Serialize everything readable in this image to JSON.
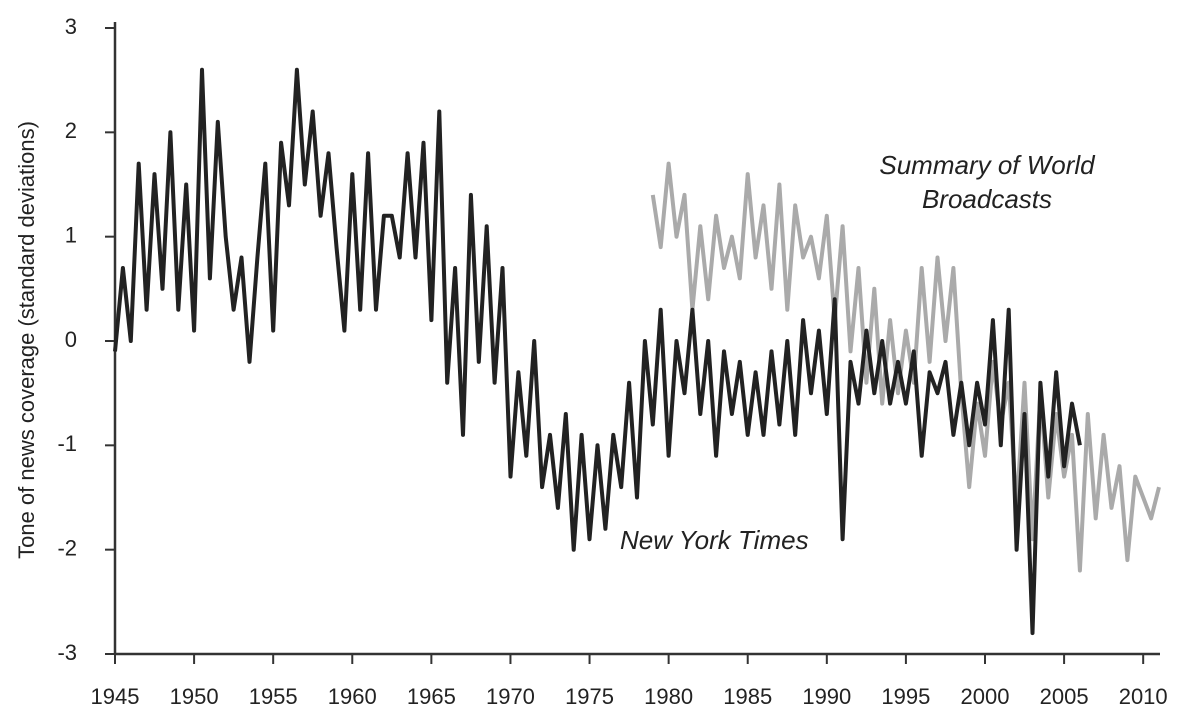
{
  "chart_data": {
    "type": "line",
    "y_label": "Tone of news coverage (standard deviations)",
    "xlim": [
      1945,
      2011
    ],
    "xticks": [
      1945,
      1950,
      1955,
      1960,
      1965,
      1970,
      1975,
      1980,
      1985,
      1990,
      1995,
      2000,
      2005,
      2010
    ],
    "ylim": [
      -3,
      3
    ],
    "yticks": [
      -3,
      -2,
      -1,
      0,
      1,
      2,
      3
    ],
    "grid": false,
    "series": [
      {
        "name": "New York Times",
        "color": "#222222",
        "x": [
          1945,
          1945.5,
          1946,
          1946.5,
          1947,
          1947.5,
          1948,
          1948.5,
          1949,
          1949.5,
          1950,
          1950.5,
          1951,
          1951.5,
          1952,
          1952.5,
          1953,
          1953.5,
          1954,
          1954.5,
          1955,
          1955.5,
          1956,
          1956.5,
          1957,
          1957.5,
          1958,
          1958.5,
          1959,
          1959.5,
          1960,
          1960.5,
          1961,
          1961.5,
          1962,
          1962.5,
          1963,
          1963.5,
          1964,
          1964.5,
          1965,
          1965.5,
          1966,
          1966.5,
          1967,
          1967.5,
          1968,
          1968.5,
          1969,
          1969.5,
          1970,
          1970.5,
          1971,
          1971.5,
          1972,
          1972.5,
          1973,
          1973.5,
          1974,
          1974.5,
          1975,
          1975.5,
          1976,
          1976.5,
          1977,
          1977.5,
          1978,
          1978.5,
          1979,
          1979.5,
          1980,
          1980.5,
          1981,
          1981.5,
          1982,
          1982.5,
          1983,
          1983.5,
          1984,
          1984.5,
          1985,
          1985.5,
          1986,
          1986.5,
          1987,
          1987.5,
          1988,
          1988.5,
          1989,
          1989.5,
          1990,
          1990.5,
          1991,
          1991.5,
          1992,
          1992.5,
          1993,
          1993.5,
          1994,
          1994.5,
          1995,
          1995.5,
          1996,
          1996.5,
          1997,
          1997.5,
          1998,
          1998.5,
          1999,
          1999.5,
          2000,
          2000.5,
          2001,
          2001.5,
          2002,
          2002.5,
          2003,
          2003.5,
          2004,
          2004.5,
          2005,
          2005.5,
          2006
        ],
        "values": [
          -0.1,
          0.7,
          0.0,
          1.7,
          0.3,
          1.6,
          0.5,
          2.0,
          0.3,
          1.5,
          0.1,
          2.6,
          0.6,
          2.1,
          1.0,
          0.3,
          0.8,
          -0.2,
          0.8,
          1.7,
          0.1,
          1.9,
          1.3,
          2.6,
          1.5,
          2.2,
          1.2,
          1.8,
          0.9,
          0.1,
          1.6,
          0.3,
          1.8,
          0.3,
          1.2,
          1.2,
          0.8,
          1.8,
          0.8,
          1.9,
          0.2,
          2.2,
          -0.4,
          0.7,
          -0.9,
          1.4,
          -0.2,
          1.1,
          -0.4,
          0.7,
          -1.3,
          -0.3,
          -1.1,
          0.0,
          -1.4,
          -0.9,
          -1.6,
          -0.7,
          -2.0,
          -0.9,
          -1.9,
          -1.0,
          -1.8,
          -0.9,
          -1.4,
          -0.4,
          -1.5,
          0.0,
          -0.8,
          0.3,
          -1.1,
          0.0,
          -0.5,
          0.3,
          -0.7,
          0.0,
          -1.1,
          -0.1,
          -0.7,
          -0.2,
          -0.9,
          -0.3,
          -0.9,
          -0.1,
          -0.8,
          0.0,
          -0.9,
          0.2,
          -0.5,
          0.1,
          -0.7,
          0.4,
          -1.9,
          -0.2,
          -0.6,
          0.1,
          -0.5,
          0.0,
          -0.6,
          -0.2,
          -0.6,
          -0.1,
          -1.1,
          -0.3,
          -0.5,
          -0.2,
          -0.9,
          -0.4,
          -1.0,
          -0.4,
          -0.8,
          0.2,
          -1.0,
          0.3,
          -2.0,
          -0.7,
          -2.8,
          -0.4,
          -1.3,
          -0.3,
          -1.2,
          -0.6,
          -1.0
        ]
      },
      {
        "name": "Summary of World Broadcasts",
        "color": "#aaaaaa",
        "x": [
          1979,
          1979.5,
          1980,
          1980.5,
          1981,
          1981.5,
          1982,
          1982.5,
          1983,
          1983.5,
          1984,
          1984.5,
          1985,
          1985.5,
          1986,
          1986.5,
          1987,
          1987.5,
          1988,
          1988.5,
          1989,
          1989.5,
          1990,
          1990.5,
          1991,
          1991.5,
          1992,
          1992.5,
          1993,
          1993.5,
          1994,
          1994.5,
          1995,
          1995.5,
          1996,
          1996.5,
          1997,
          1997.5,
          1998,
          1998.5,
          1999,
          1999.5,
          2000,
          2000.5,
          2001,
          2001.5,
          2002,
          2002.5,
          2003,
          2003.5,
          2004,
          2004.5,
          2005,
          2005.5,
          2006,
          2006.5,
          2007,
          2007.5,
          2008,
          2008.5,
          2009,
          2009.5,
          2010,
          2010.5,
          2011
        ],
        "values": [
          1.4,
          0.9,
          1.7,
          1.0,
          1.4,
          0.3,
          1.1,
          0.4,
          1.2,
          0.7,
          1.0,
          0.6,
          1.6,
          0.8,
          1.3,
          0.5,
          1.5,
          0.3,
          1.3,
          0.8,
          1.0,
          0.6,
          1.2,
          0.2,
          1.1,
          -0.1,
          0.7,
          -0.4,
          0.5,
          -0.6,
          0.2,
          -0.5,
          0.1,
          -0.4,
          0.7,
          -0.2,
          0.8,
          0.0,
          0.7,
          -0.5,
          -1.4,
          -0.6,
          -1.1,
          -0.2,
          -0.8,
          -0.4,
          -1.6,
          -0.4,
          -1.9,
          -0.5,
          -1.5,
          -0.7,
          -1.3,
          -0.9,
          -2.2,
          -0.7,
          -1.7,
          -0.9,
          -1.6,
          -1.2,
          -2.1,
          -1.3,
          -1.5,
          -1.7,
          -1.4
        ]
      }
    ]
  }
}
